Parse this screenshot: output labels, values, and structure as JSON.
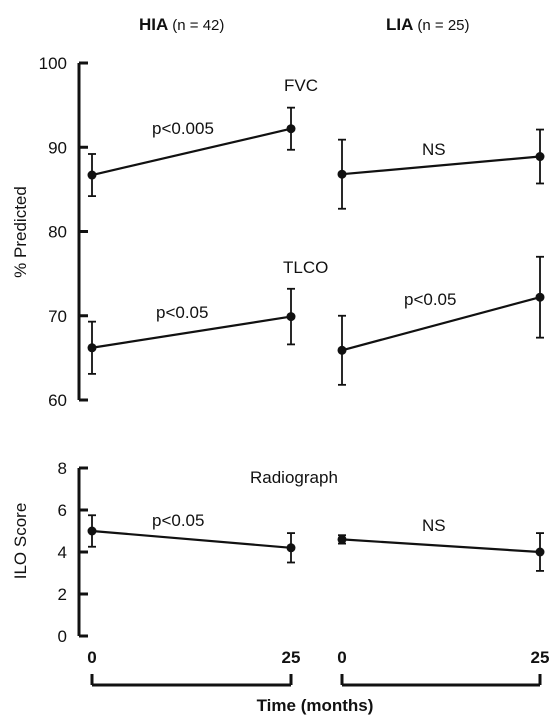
{
  "header": {
    "group_left_name": "HIA",
    "group_left_n": "(n = 42)",
    "group_right_name": "LIA",
    "group_right_n": "(n = 25)"
  },
  "x_axis": {
    "label": "Time (months)",
    "ticks": [
      "0",
      "25"
    ]
  },
  "chart_data": [
    {
      "type": "line",
      "panel": "top",
      "ylabel": "% Predicted",
      "ylim": [
        60,
        100
      ],
      "yticks": [
        60,
        70,
        80,
        90,
        100
      ],
      "x": [
        0,
        25
      ],
      "series": [
        {
          "name": "FVC",
          "groups": {
            "HIA": {
              "values": [
                86.7,
                92.2
              ],
              "err": [
                2.5,
                2.5
              ],
              "annotation": "p<0.005"
            },
            "LIA": {
              "values": [
                86.8,
                88.9
              ],
              "err": [
                4.1,
                3.2
              ],
              "annotation": "NS"
            }
          }
        },
        {
          "name": "TLCO",
          "groups": {
            "HIA": {
              "values": [
                66.2,
                69.9
              ],
              "err": [
                3.1,
                3.3
              ],
              "annotation": "p<0.05"
            },
            "LIA": {
              "values": [
                65.9,
                72.2
              ],
              "err": [
                4.1,
                4.8
              ],
              "annotation": "p<0.05"
            }
          }
        }
      ]
    },
    {
      "type": "line",
      "panel": "bottom",
      "title": "Radiograph",
      "ylabel": "ILO Score",
      "ylim": [
        0,
        8
      ],
      "yticks": [
        0,
        2,
        4,
        6,
        8
      ],
      "x": [
        0,
        25
      ],
      "series": [
        {
          "name": "Radiograph",
          "groups": {
            "HIA": {
              "values": [
                5.0,
                4.2
              ],
              "err": [
                0.75,
                0.7
              ],
              "annotation": "p<0.05"
            },
            "LIA": {
              "values": [
                4.6,
                4.0
              ],
              "err": [
                0.2,
                0.9
              ],
              "annotation": "NS"
            }
          }
        }
      ]
    }
  ]
}
